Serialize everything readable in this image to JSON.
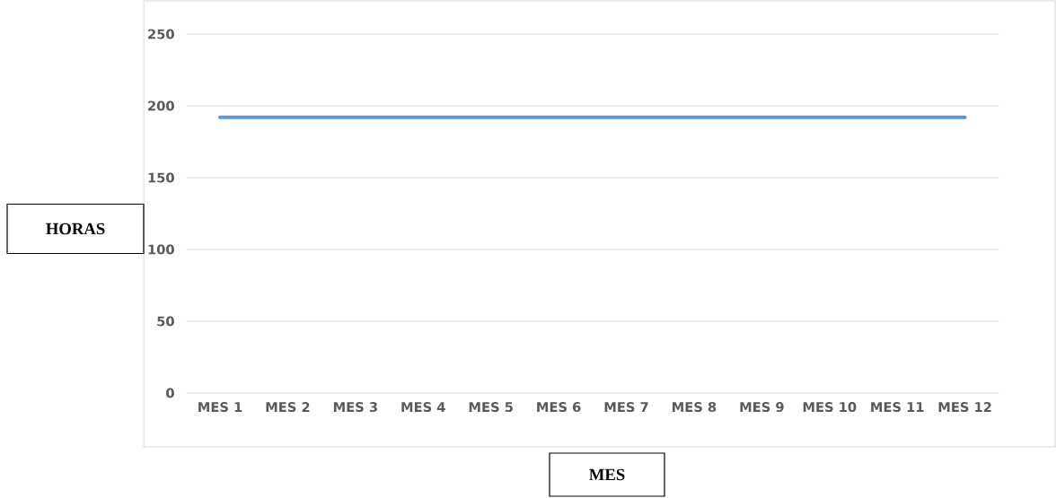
{
  "chart_data": {
    "type": "line",
    "xlabel": "MES",
    "ylabel": "HORAS",
    "categories": [
      "MES 1",
      "MES 2",
      "MES 3",
      "MES 4",
      "MES 5",
      "MES 6",
      "MES 7",
      "MES 8",
      "MES 9",
      "MES 10",
      "MES 11",
      "MES 12"
    ],
    "series": [
      {
        "color": "#5b9bd5",
        "values": [
          192,
          192,
          192,
          192,
          192,
          192,
          192,
          192,
          192,
          192,
          192,
          192
        ]
      }
    ],
    "ylim": [
      0,
      250
    ],
    "yticks": [
      0,
      50,
      100,
      150,
      200,
      250
    ],
    "grid": "y",
    "line_style": "solid"
  }
}
